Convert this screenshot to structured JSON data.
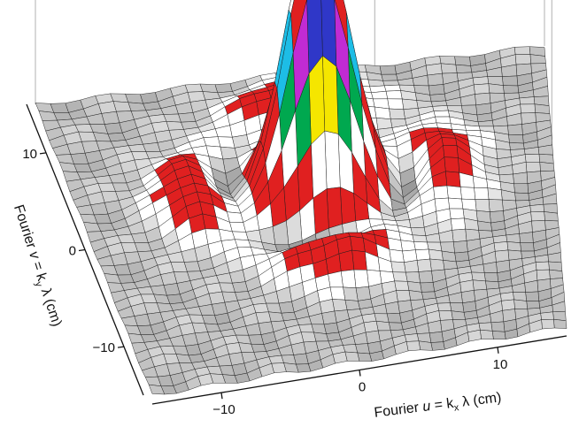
{
  "chart_data": {
    "type": "surface",
    "xlabel": "Fourier u = k_x λ (cm)",
    "ylabel": "Fourier v = k_y λ (cm)",
    "xlabel_parts": {
      "prefix": "Fourier ",
      "var": "u",
      "mid": " = k",
      "sub": "x",
      "suffix": " λ (cm)"
    },
    "ylabel_parts": {
      "prefix": "Fourier ",
      "var": "v",
      "mid": " = k",
      "sub": "y",
      "suffix": " λ (cm)"
    },
    "x_ticks": [
      {
        "value": -10,
        "label": "−10"
      },
      {
        "value": 0,
        "label": "0"
      },
      {
        "value": 10,
        "label": "10"
      }
    ],
    "y_ticks": [
      {
        "value": -10,
        "label": "−10"
      },
      {
        "value": 0,
        "label": "0"
      },
      {
        "value": 10,
        "label": "10"
      }
    ],
    "xlim": [
      -15,
      15
    ],
    "ylim": [
      -15,
      15
    ],
    "peak": {
      "u": 0,
      "v": 3
    },
    "colormap": [
      "#d9d9d9",
      "#ffffff",
      "#e02020",
      "#00a84f",
      "#f5e600",
      "#1dbde6",
      "#c12bd3",
      "#2f37c8"
    ]
  }
}
